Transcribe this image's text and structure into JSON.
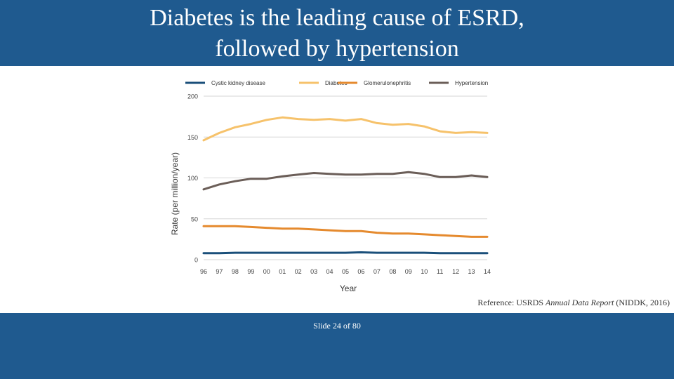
{
  "slide": {
    "title_line1": "Diabetes is the leading cause of ESRD,",
    "title_line2": "followed by hypertension",
    "reference_prefix": "Reference: USRDS ",
    "reference_italic": "Annual Data Report",
    "reference_suffix": " (NIDDK, 2016)",
    "slide_number": "Slide 24 of 80",
    "colors": {
      "band": "#1f5a8f"
    }
  },
  "chart_data": {
    "type": "line",
    "title": "",
    "xlabel": "Year",
    "ylabel": "Rate (per million/year)",
    "ylim": [
      0,
      200
    ],
    "yticks": [
      0,
      50,
      100,
      150,
      200
    ],
    "grid": true,
    "legend_position": "top",
    "categories": [
      "96",
      "97",
      "98",
      "99",
      "00",
      "01",
      "02",
      "03",
      "04",
      "05",
      "06",
      "07",
      "08",
      "09",
      "10",
      "11",
      "12",
      "13",
      "14"
    ],
    "series": [
      {
        "name": "Cystic kidney disease",
        "color": "#1a4f7a",
        "values": [
          8,
          8,
          8.5,
          8.5,
          8.5,
          8.5,
          8.5,
          8.5,
          8.5,
          8.5,
          9,
          8.5,
          8.5,
          8.5,
          8.5,
          8,
          8,
          8,
          8
        ]
      },
      {
        "name": "Diabetes",
        "color": "#f6c26b",
        "values": [
          146,
          155,
          162,
          166,
          171,
          174,
          172,
          171,
          172,
          170,
          172,
          167,
          165,
          166,
          163,
          157,
          155,
          156,
          155
        ]
      },
      {
        "name": "Glomerulonephritis",
        "color": "#e58a2e",
        "values": [
          41,
          41,
          41,
          40,
          39,
          38,
          38,
          37,
          36,
          35,
          35,
          33,
          32,
          32,
          31,
          30,
          29,
          28,
          28
        ]
      },
      {
        "name": "Hypertension",
        "color": "#6b5e58",
        "values": [
          86,
          92,
          96,
          99,
          99,
          102,
          104,
          106,
          105,
          104,
          104,
          105,
          105,
          107,
          105,
          101,
          101,
          103,
          101
        ]
      }
    ]
  }
}
